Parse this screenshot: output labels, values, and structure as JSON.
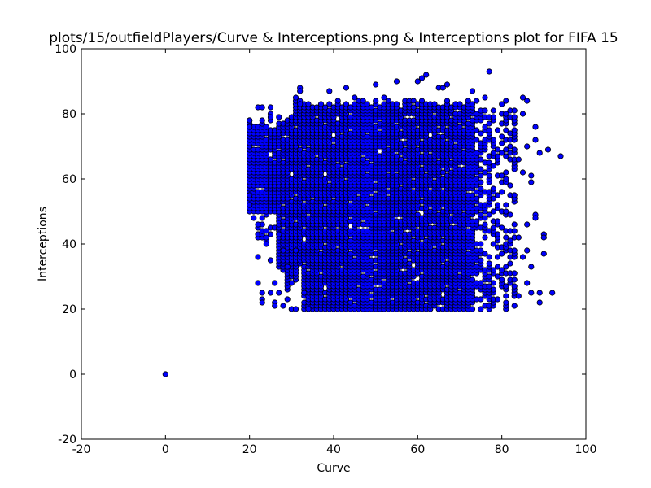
{
  "chart_data": {
    "type": "scatter",
    "title": "plots/15/outfieldPlayers/Curve & Interceptions.png & Interceptions plot for FIFA 15",
    "xlabel": "Curve",
    "ylabel": "Interceptions",
    "xlim": [
      -20,
      100
    ],
    "ylim": [
      -20,
      100
    ],
    "xticks": [
      -20,
      0,
      20,
      40,
      60,
      80,
      100
    ],
    "yticks": [
      -20,
      0,
      20,
      40,
      60,
      80,
      100
    ],
    "grid": false,
    "legend": "none",
    "marker_color": "#0000ff",
    "marker_edge": "#000000",
    "series": [
      {
        "values_note": "dense cloud of players, Curve ~20-88, Interceptions ~20-88",
        "points": [
          [
            0,
            0
          ],
          [
            94,
            67
          ],
          [
            92,
            25
          ],
          [
            91,
            69
          ],
          [
            90,
            43
          ],
          [
            90,
            42
          ],
          [
            90,
            37
          ],
          [
            89,
            68
          ],
          [
            89,
            22
          ],
          [
            89,
            25
          ],
          [
            88,
            49
          ],
          [
            88,
            72
          ],
          [
            88,
            76
          ],
          [
            88,
            48
          ],
          [
            87,
            25
          ],
          [
            87,
            61
          ],
          [
            87,
            59
          ],
          [
            87,
            33
          ],
          [
            86,
            84
          ],
          [
            86,
            70
          ],
          [
            86,
            46
          ],
          [
            86,
            38
          ],
          [
            86,
            28
          ],
          [
            85,
            85
          ],
          [
            85,
            80
          ],
          [
            85,
            62
          ],
          [
            85,
            36
          ],
          [
            84,
            66
          ],
          [
            84,
            42
          ],
          [
            84,
            24
          ],
          [
            77,
            93
          ],
          [
            62,
            92
          ],
          [
            61,
            91
          ],
          [
            60,
            90
          ],
          [
            55,
            90
          ],
          [
            50,
            89
          ],
          [
            32,
            88
          ],
          [
            32,
            87
          ],
          [
            39,
            87
          ],
          [
            43,
            88
          ],
          [
            65,
            88
          ],
          [
            66,
            88
          ],
          [
            67,
            89
          ],
          [
            73,
            87
          ],
          [
            76,
            85
          ],
          [
            20,
            78
          ],
          [
            20,
            76
          ],
          [
            20,
            52
          ],
          [
            20,
            55
          ],
          [
            21,
            48
          ],
          [
            22,
            82
          ],
          [
            22,
            46
          ],
          [
            22,
            36
          ],
          [
            22,
            28
          ],
          [
            23,
            82
          ],
          [
            23,
            25
          ],
          [
            23,
            23
          ],
          [
            23,
            22
          ],
          [
            24,
            44
          ],
          [
            24,
            40
          ],
          [
            25,
            82
          ],
          [
            25,
            79
          ],
          [
            25,
            35
          ],
          [
            25,
            25
          ],
          [
            26,
            28
          ],
          [
            26,
            22
          ],
          [
            26,
            21
          ],
          [
            27,
            43
          ],
          [
            27,
            25
          ],
          [
            28,
            47
          ],
          [
            28,
            38
          ],
          [
            28,
            21
          ],
          [
            29,
            33
          ],
          [
            29,
            23
          ],
          [
            30,
            28
          ],
          [
            30,
            20
          ],
          [
            31,
            38
          ],
          [
            31,
            20
          ],
          [
            32,
            83
          ],
          [
            33,
            25
          ],
          [
            34,
            20
          ]
        ]
      }
    ]
  }
}
